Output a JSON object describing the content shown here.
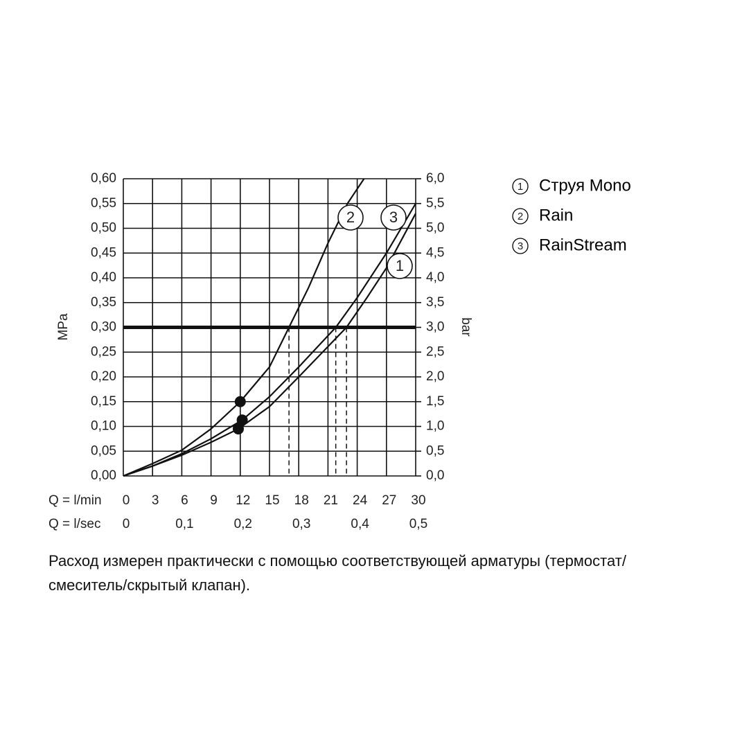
{
  "chart_data": {
    "type": "line",
    "y_label": "MPa",
    "y2_label": "bar",
    "x_label": "Q = l/min",
    "x2_label": "Q = l/sec",
    "xlim": [
      0,
      30
    ],
    "xticks": [
      0,
      3,
      6,
      9,
      12,
      15,
      18,
      21,
      24,
      27,
      30
    ],
    "x2lim": [
      0,
      0.5
    ],
    "x2ticks": [
      0,
      {
        "value": 0.1,
        "label": "0,1"
      },
      {
        "value": 0.2,
        "label": "0,2"
      },
      {
        "value": 0.3,
        "label": "0,3"
      },
      {
        "value": 0.4,
        "label": "0,4"
      },
      {
        "value": 0.5,
        "label": "0,5"
      }
    ],
    "ylim": [
      0,
      0.6
    ],
    "yticks": [
      {
        "value": 0,
        "label": "0,00"
      },
      {
        "value": 0.05,
        "label": "0,05"
      },
      {
        "value": 0.1,
        "label": "0,10"
      },
      {
        "value": 0.15,
        "label": "0,15"
      },
      {
        "value": 0.2,
        "label": "0,20"
      },
      {
        "value": 0.25,
        "label": "0,25"
      },
      {
        "value": 0.3,
        "label": "0,30"
      },
      {
        "value": 0.35,
        "label": "0,35"
      },
      {
        "value": 0.4,
        "label": "0,40"
      },
      {
        "value": 0.45,
        "label": "0,45"
      },
      {
        "value": 0.5,
        "label": "0,50"
      },
      {
        "value": 0.55,
        "label": "0,55"
      },
      {
        "value": 0.6,
        "label": "0,60"
      }
    ],
    "y2lim": [
      0,
      6
    ],
    "y2ticks": [
      {
        "value": 0,
        "label": "0,0"
      },
      {
        "value": 0.5,
        "label": "0,5"
      },
      {
        "value": 1,
        "label": "1,0"
      },
      {
        "value": 1.5,
        "label": "1,5"
      },
      {
        "value": 2,
        "label": "2,0"
      },
      {
        "value": 2.5,
        "label": "2,5"
      },
      {
        "value": 3,
        "label": "3,0"
      },
      {
        "value": 3.5,
        "label": "3,5"
      },
      {
        "value": 4,
        "label": "4,0"
      },
      {
        "value": 4.5,
        "label": "4,5"
      },
      {
        "value": 5,
        "label": "5,0"
      },
      {
        "value": 5.5,
        "label": "5,5"
      },
      {
        "value": 6,
        "label": "6,0"
      }
    ],
    "grid": true,
    "reference_line": 0.3,
    "color": "#111",
    "series": [
      {
        "name": "Струя Mono",
        "label": "1",
        "x": [
          0,
          3,
          6,
          9,
          11.8,
          15,
          18,
          22.9,
          25,
          27,
          30
        ],
        "values": [
          0,
          0.02,
          0.042,
          0.068,
          0.095,
          0.14,
          0.2,
          0.3,
          0.36,
          0.42,
          0.53
        ],
        "marker": {
          "x": 11.8,
          "y": 0.095
        }
      },
      {
        "name": "Rain",
        "label": "2",
        "x": [
          0,
          3,
          6,
          9,
          12,
          15,
          17,
          19,
          21,
          23,
          24.7
        ],
        "values": [
          0,
          0.025,
          0.052,
          0.095,
          0.15,
          0.22,
          0.3,
          0.38,
          0.47,
          0.55,
          0.6
        ],
        "marker": {
          "x": 12,
          "y": 0.15
        }
      },
      {
        "name": "RainStream",
        "label": "3",
        "x": [
          0,
          3,
          6,
          9,
          12.2,
          15,
          18,
          21.8,
          24,
          27,
          30
        ],
        "values": [
          0,
          0.02,
          0.045,
          0.075,
          0.113,
          0.16,
          0.22,
          0.3,
          0.36,
          0.45,
          0.55
        ],
        "marker": {
          "x": 12.2,
          "y": 0.113
        }
      }
    ]
  },
  "footnote": [
    "Расход измерен практически с помощью соответствующей арматуры (термостат/",
    "смеситель/скрытый клапан)."
  ]
}
